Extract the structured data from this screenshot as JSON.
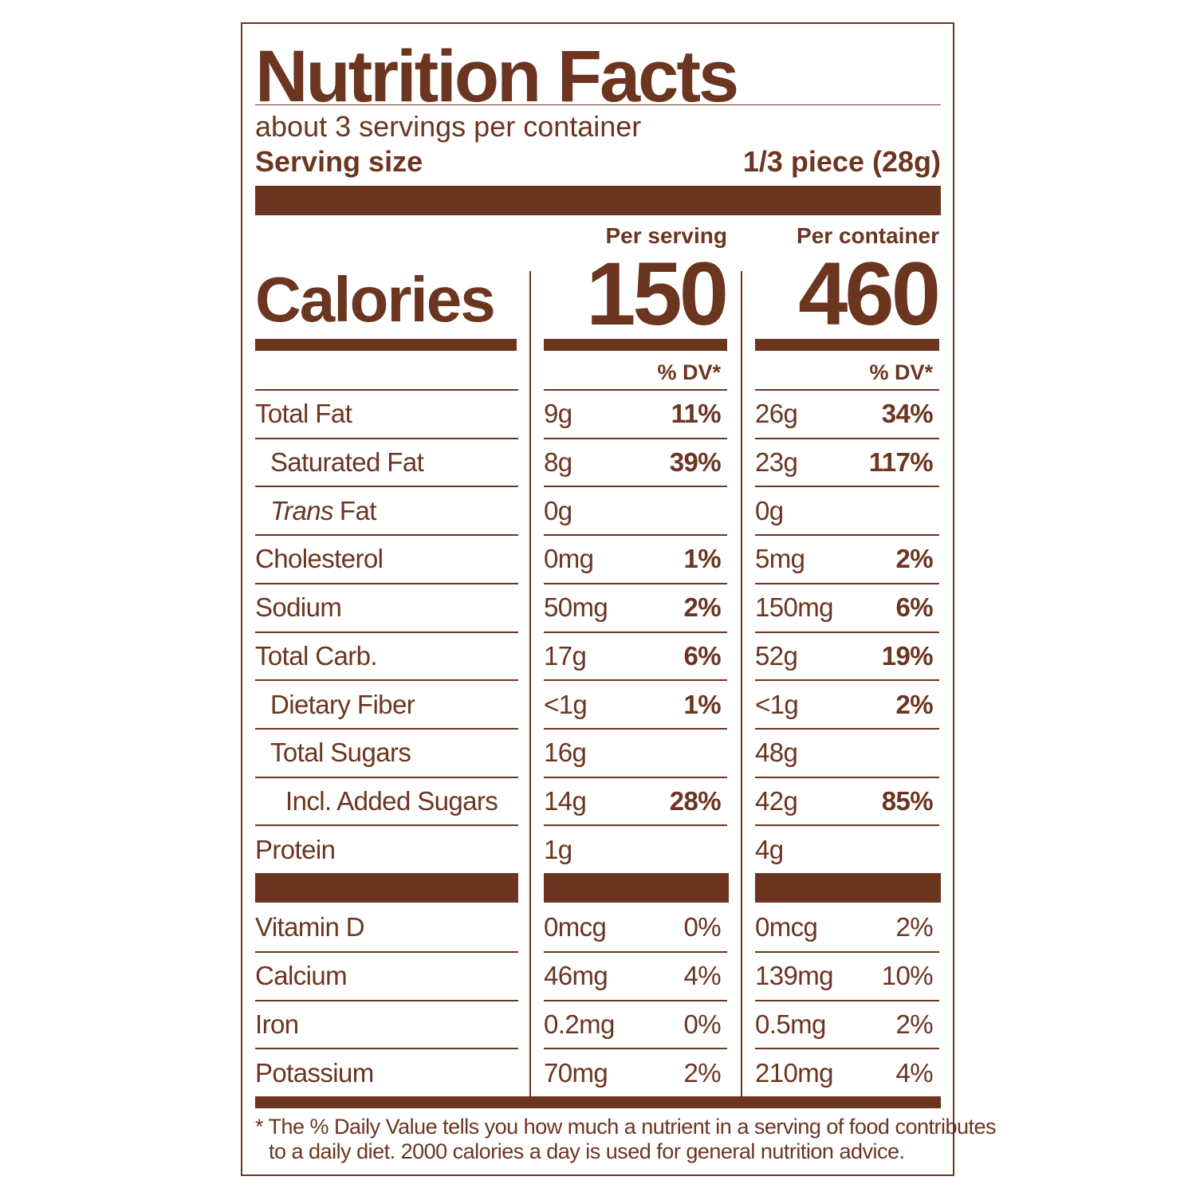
{
  "title": "Nutrition Facts",
  "servings": "about 3 servings per container",
  "serving_size": {
    "label": "Serving size",
    "value": "1/3 piece (28g)"
  },
  "columns": [
    "Per serving",
    "Per container"
  ],
  "calories": {
    "label": "Calories",
    "values": [
      150,
      460
    ]
  },
  "dv_header": [
    "% DV*",
    "% DV*"
  ],
  "nutrients": [
    {
      "name": "Total Fat",
      "indent": 0,
      "cells": [
        [
          "9g",
          "11%"
        ],
        [
          "26g",
          "34%"
        ]
      ]
    },
    {
      "name": "Saturated Fat",
      "indent": 1,
      "cells": [
        [
          "8g",
          "39%"
        ],
        [
          "23g",
          "117%"
        ]
      ]
    },
    {
      "italic_prefix": "Trans",
      "name": "Fat",
      "indent": 1,
      "cells": [
        [
          "0g"
        ],
        [
          "0g"
        ]
      ]
    },
    {
      "name": "Cholesterol",
      "indent": 0,
      "cells": [
        [
          "0mg",
          "1%"
        ],
        [
          "5mg",
          "2%"
        ]
      ]
    },
    {
      "name": "Sodium",
      "indent": 0,
      "cells": [
        [
          "50mg",
          "2%"
        ],
        [
          "150mg",
          "6%"
        ]
      ]
    },
    {
      "name": "Total Carb.",
      "indent": 0,
      "cells": [
        [
          "17g",
          "6%"
        ],
        [
          "52g",
          "19%"
        ]
      ]
    },
    {
      "name": "Dietary Fiber",
      "indent": 1,
      "cells": [
        [
          "<1g",
          "1%"
        ],
        [
          "<1g",
          "2%"
        ]
      ]
    },
    {
      "name": "Total Sugars",
      "indent": 1,
      "cells": [
        [
          "16g"
        ],
        [
          "48g"
        ]
      ]
    },
    {
      "name": "Incl. Added Sugars",
      "indent": 2,
      "cells": [
        [
          "14g",
          "28%"
        ],
        [
          "42g",
          "85%"
        ]
      ]
    },
    {
      "name": "Protein",
      "indent": 0,
      "cells": [
        [
          "1g"
        ],
        [
          "4g"
        ]
      ]
    }
  ],
  "vitamins": [
    {
      "name": "Vitamin D",
      "cells": [
        [
          "0mcg",
          "0%"
        ],
        [
          "0mcg",
          "2%"
        ]
      ]
    },
    {
      "name": "Calcium",
      "cells": [
        [
          "46mg",
          "4%"
        ],
        [
          "139mg",
          "10%"
        ]
      ]
    },
    {
      "name": "Iron",
      "cells": [
        [
          "0.2mg",
          "0%"
        ],
        [
          "0.5mg",
          "2%"
        ]
      ]
    },
    {
      "name": "Potassium",
      "cells": [
        [
          "70mg",
          "2%"
        ],
        [
          "210mg",
          "4%"
        ]
      ]
    }
  ],
  "footnote": [
    "* The % Daily Value tells you how much a nutrient in a serving of food contributes",
    "to a daily diet. 2000 calories a day is used for general nutrition advice."
  ]
}
